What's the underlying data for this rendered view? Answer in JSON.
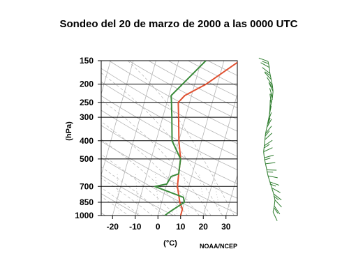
{
  "chart_data": {
    "type": "line",
    "title": "Sondeo del 20 de marzo de 2000 a las 0000 UTC",
    "xlabel": "(°C)",
    "ylabel": "(hPa)",
    "credit": "NOAA/NCEP",
    "y_scale": "log-pressure (inverted)",
    "ylim": [
      1000,
      150
    ],
    "xlim": [
      -25,
      35
    ],
    "pressure_levels": [
      150,
      200,
      250,
      300,
      400,
      500,
      700,
      850,
      1000
    ],
    "x_ticks": [
      -20,
      -10,
      0,
      10,
      20,
      30
    ],
    "grid": "skew-T log-P background: isobars, skewed isotherms, dry and moist adiabats, mixing-ratio lines",
    "colors": {
      "temperature": "#e05030",
      "dewpoint": "#3c8c3c",
      "wind_barbs": "#2e7d2e",
      "grid": "#b4b4b4"
    },
    "series": [
      {
        "key": "temperature",
        "points": [
          {
            "p": 1000,
            "t": 10
          },
          {
            "p": 925,
            "t": 10
          },
          {
            "p": 850,
            "t": 8
          },
          {
            "p": 700,
            "t": 5
          },
          {
            "p": 600,
            "t": 4
          },
          {
            "p": 500,
            "t": 3
          },
          {
            "p": 400,
            "t": 0
          },
          {
            "p": 300,
            "t": -3
          },
          {
            "p": 250,
            "t": -5
          },
          {
            "p": 230,
            "t": -3
          },
          {
            "p": 200,
            "t": 5
          },
          {
            "p": 150,
            "t": 17
          }
        ]
      },
      {
        "key": "dewpoint",
        "points": [
          {
            "p": 1000,
            "t": 3
          },
          {
            "p": 950,
            "t": 5
          },
          {
            "p": 850,
            "t": 10
          },
          {
            "p": 800,
            "t": 9
          },
          {
            "p": 700,
            "t": -5
          },
          {
            "p": 680,
            "t": 0
          },
          {
            "p": 620,
            "t": 1
          },
          {
            "p": 600,
            "t": 4
          },
          {
            "p": 500,
            "t": 3
          },
          {
            "p": 400,
            "t": -3
          },
          {
            "p": 300,
            "t": -6
          },
          {
            "p": 250,
            "t": -8
          },
          {
            "p": 230,
            "t": -9
          },
          {
            "p": 150,
            "t": 2
          }
        ]
      }
    ],
    "wind_barbs_present": true
  }
}
